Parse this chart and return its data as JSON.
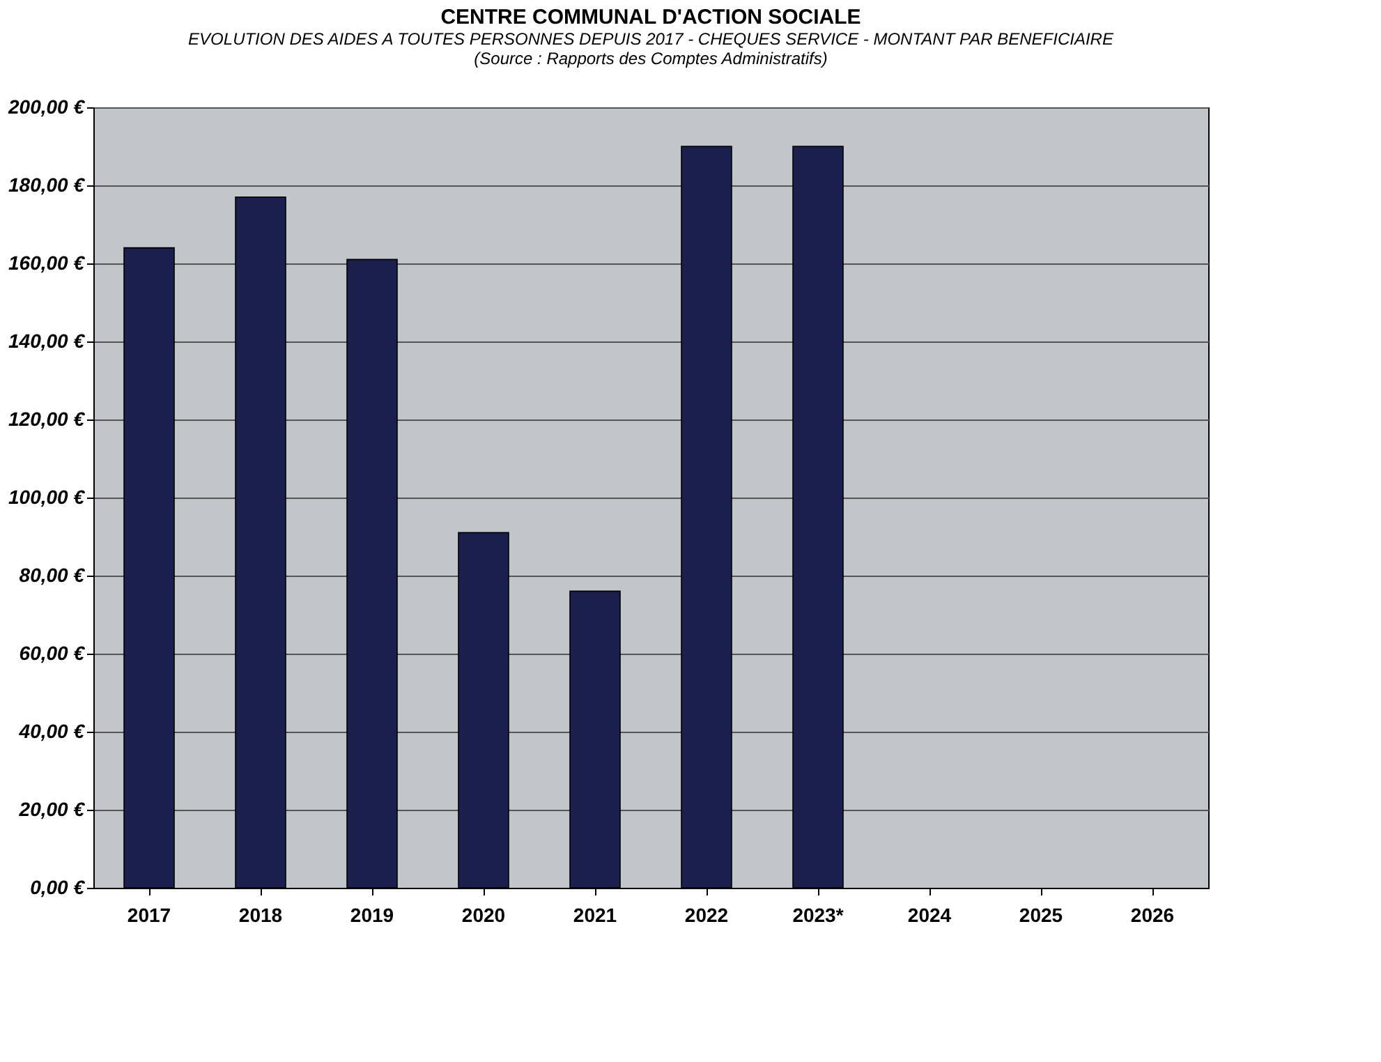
{
  "chart_data": {
    "type": "bar",
    "title": "CENTRE COMMUNAL D'ACTION SOCIALE",
    "subtitle": "EVOLUTION DES AIDES A TOUTES PERSONNES DEPUIS 2017 - CHEQUES SERVICE - MONTANT PAR BENEFICIAIRE",
    "annotations": [
      "(Source : Rapports des Comptes Administratifs)"
    ],
    "categories": [
      "2017",
      "2018",
      "2019",
      "2020",
      "2021",
      "2022",
      "2023*",
      "2024",
      "2025",
      "2026"
    ],
    "values": [
      164,
      177,
      161,
      91,
      76,
      190,
      190,
      null,
      null,
      null
    ],
    "color": "#1a1f4e",
    "ylim": [
      0,
      200
    ],
    "yticks": [
      {
        "value": 0,
        "label": "0,00 €"
      },
      {
        "value": 20,
        "label": "20,00 €"
      },
      {
        "value": 40,
        "label": "40,00 €"
      },
      {
        "value": 60,
        "label": "60,00 €"
      },
      {
        "value": 80,
        "label": "80,00 €"
      },
      {
        "value": 100,
        "label": "100,00 €"
      },
      {
        "value": 120,
        "label": "120,00 €"
      },
      {
        "value": 140,
        "label": "140,00 €"
      },
      {
        "value": 160,
        "label": "160,00 €"
      },
      {
        "value": 180,
        "label": "180,00 €"
      },
      {
        "value": 200,
        "label": "200,00 €"
      }
    ],
    "grid": "y"
  }
}
